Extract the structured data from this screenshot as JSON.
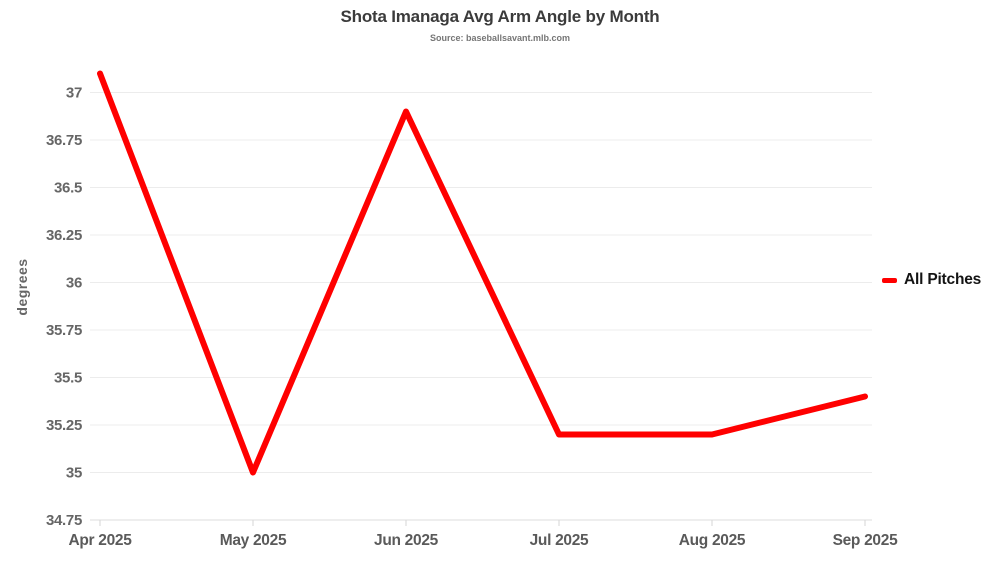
{
  "chart_data": {
    "type": "line",
    "title": "Shota Imanaga Avg Arm Angle by Month",
    "subtitle": "Source: baseballsavant.mlb.com",
    "xlabel": "",
    "ylabel": "degrees",
    "categories": [
      "Apr 2025",
      "May 2025",
      "Jun 2025",
      "Jul 2025",
      "Aug 2025",
      "Sep 2025"
    ],
    "series": [
      {
        "name": "All Pitches",
        "color": "#ff0000",
        "values": [
          37.1,
          35.0,
          36.9,
          35.2,
          35.2,
          35.4
        ]
      }
    ],
    "y_ticks": [
      34.75,
      35,
      35.25,
      35.5,
      35.75,
      36,
      36.25,
      36.5,
      36.75,
      37
    ],
    "ylim": [
      34.75,
      37.25
    ],
    "grid": "horizontal-only",
    "legend_position": "right"
  },
  "colors": {
    "line": "#ff0000",
    "gridline": "#ececec",
    "axis_line": "#dcdcdc",
    "tick_mark": "#d6d6d6",
    "y_tick_label": "#666666",
    "x_tick_label": "#5a5a5a",
    "title": "#3b3b3b",
    "subtitle": "#767676",
    "legend_text": "#141414",
    "background": "#ffffff"
  }
}
